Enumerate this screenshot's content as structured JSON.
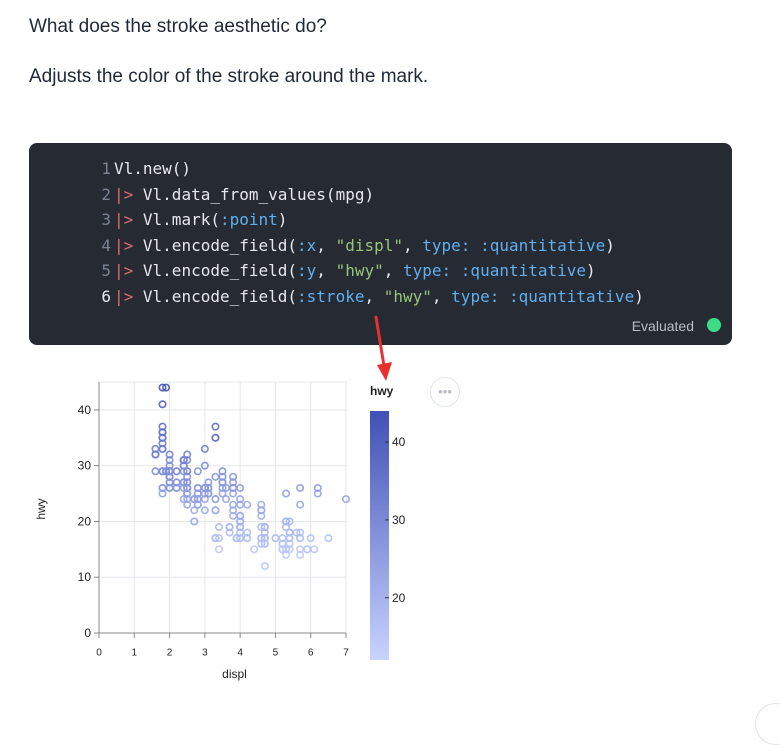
{
  "question": "What does the stroke aesthetic do?",
  "answer": "Adjusts the color of the stroke around the mark.",
  "code_cell": {
    "line_numbers": [
      "1",
      "2",
      "3",
      "4",
      "5",
      "6"
    ],
    "lines": [
      [
        {
          "t": "plain",
          "v": "Vl.new()"
        }
      ],
      [
        {
          "t": "pipe",
          "v": "|> "
        },
        {
          "t": "plain",
          "v": "Vl.data_from_values(mpg)"
        }
      ],
      [
        {
          "t": "pipe",
          "v": "|> "
        },
        {
          "t": "plain",
          "v": "Vl.mark("
        },
        {
          "t": "atom",
          "v": ":point"
        },
        {
          "t": "plain",
          "v": ")"
        }
      ],
      [
        {
          "t": "pipe",
          "v": "|> "
        },
        {
          "t": "plain",
          "v": "Vl.encode_field("
        },
        {
          "t": "atom",
          "v": ":x"
        },
        {
          "t": "plain",
          "v": ", "
        },
        {
          "t": "str",
          "v": "\"displ\""
        },
        {
          "t": "plain",
          "v": ", "
        },
        {
          "t": "key",
          "v": "type: "
        },
        {
          "t": "atom",
          "v": ":quantitative"
        },
        {
          "t": "plain",
          "v": ")"
        }
      ],
      [
        {
          "t": "pipe",
          "v": "|> "
        },
        {
          "t": "plain",
          "v": "Vl.encode_field("
        },
        {
          "t": "atom",
          "v": ":y"
        },
        {
          "t": "plain",
          "v": ", "
        },
        {
          "t": "str",
          "v": "\"hwy\""
        },
        {
          "t": "plain",
          "v": ", "
        },
        {
          "t": "key",
          "v": "type: "
        },
        {
          "t": "atom",
          "v": ":quantitative"
        },
        {
          "t": "plain",
          "v": ")"
        }
      ],
      [
        {
          "t": "pipe",
          "v": "|> "
        },
        {
          "t": "plain",
          "v": "Vl.encode_field("
        },
        {
          "t": "atom",
          "v": ":stroke"
        },
        {
          "t": "plain",
          "v": ", "
        },
        {
          "t": "str",
          "v": "\"hwy\""
        },
        {
          "t": "plain",
          "v": ", "
        },
        {
          "t": "key",
          "v": "type: "
        },
        {
          "t": "atom",
          "v": ":quantitative"
        },
        {
          "t": "plain",
          "v": ")"
        }
      ]
    ],
    "status": "Evaluated",
    "status_color": "#3ddc84"
  },
  "more_button_label": "•••",
  "chart_data": {
    "type": "scatter",
    "xlabel": "displ",
    "ylabel": "hwy",
    "xlim": [
      0,
      7
    ],
    "ylim": [
      0,
      45
    ],
    "x_ticks": [
      "0",
      "1",
      "2",
      "3",
      "4",
      "5",
      "6",
      "7"
    ],
    "y_ticks": [
      "0",
      "10",
      "20",
      "30",
      "40"
    ],
    "grid": true,
    "legend": {
      "title": "hwy",
      "type": "gradient",
      "ticks": [
        "40",
        "30",
        "20"
      ],
      "domain": [
        12,
        44
      ],
      "colors": [
        "#c8d3ff",
        "#3f51b5"
      ],
      "placement": "right"
    },
    "points": [
      [
        1.8,
        29
      ],
      [
        1.8,
        29
      ],
      [
        2.0,
        31
      ],
      [
        2.0,
        30
      ],
      [
        2.8,
        26
      ],
      [
        2.8,
        26
      ],
      [
        3.1,
        27
      ],
      [
        1.8,
        26
      ],
      [
        1.8,
        25
      ],
      [
        2.0,
        28
      ],
      [
        2.0,
        27
      ],
      [
        2.8,
        25
      ],
      [
        2.8,
        25
      ],
      [
        3.1,
        25
      ],
      [
        3.1,
        25
      ],
      [
        2.8,
        24
      ],
      [
        3.1,
        25
      ],
      [
        4.2,
        23
      ],
      [
        5.3,
        20
      ],
      [
        5.3,
        15
      ],
      [
        5.3,
        20
      ],
      [
        5.7,
        17
      ],
      [
        6.0,
        17
      ],
      [
        5.7,
        26
      ],
      [
        5.7,
        23
      ],
      [
        6.2,
        26
      ],
      [
        6.2,
        25
      ],
      [
        7.0,
        24
      ],
      [
        5.3,
        19
      ],
      [
        5.3,
        14
      ],
      [
        5.7,
        15
      ],
      [
        6.5,
        17
      ],
      [
        2.4,
        27
      ],
      [
        2.4,
        30
      ],
      [
        3.1,
        26
      ],
      [
        3.5,
        29
      ],
      [
        3.6,
        26
      ],
      [
        2.4,
        24
      ],
      [
        3.0,
        24
      ],
      [
        3.3,
        22
      ],
      [
        3.3,
        22
      ],
      [
        3.3,
        24
      ],
      [
        3.3,
        24
      ],
      [
        3.3,
        17
      ],
      [
        3.8,
        22
      ],
      [
        3.8,
        21
      ],
      [
        3.8,
        23
      ],
      [
        4.0,
        23
      ],
      [
        3.7,
        19
      ],
      [
        3.7,
        18
      ],
      [
        3.9,
        17
      ],
      [
        3.9,
        17
      ],
      [
        4.7,
        19
      ],
      [
        4.7,
        19
      ],
      [
        4.7,
        12
      ],
      [
        5.2,
        17
      ],
      [
        5.2,
        15
      ],
      [
        3.9,
        17
      ],
      [
        4.7,
        17
      ],
      [
        4.7,
        12
      ],
      [
        4.7,
        17
      ],
      [
        5.2,
        16
      ],
      [
        5.7,
        18
      ],
      [
        5.9,
        15
      ],
      [
        4.7,
        16
      ],
      [
        4.7,
        12
      ],
      [
        4.7,
        17
      ],
      [
        4.7,
        17
      ],
      [
        4.7,
        16
      ],
      [
        4.7,
        12
      ],
      [
        5.2,
        15
      ],
      [
        5.2,
        16
      ],
      [
        5.7,
        17
      ],
      [
        5.9,
        15
      ],
      [
        4.6,
        17
      ],
      [
        5.4,
        17
      ],
      [
        5.4,
        18
      ],
      [
        4.0,
        17
      ],
      [
        4.0,
        19
      ],
      [
        4.0,
        17
      ],
      [
        4.0,
        19
      ],
      [
        4.6,
        19
      ],
      [
        5.0,
        17
      ],
      [
        4.2,
        17
      ],
      [
        4.2,
        17
      ],
      [
        4.6,
        16
      ],
      [
        4.6,
        16
      ],
      [
        4.6,
        17
      ],
      [
        5.4,
        15
      ],
      [
        5.4,
        17
      ],
      [
        3.8,
        26
      ],
      [
        3.8,
        25
      ],
      [
        4.0,
        26
      ],
      [
        4.0,
        24
      ],
      [
        4.6,
        21
      ],
      [
        4.6,
        22
      ],
      [
        4.6,
        23
      ],
      [
        4.6,
        22
      ],
      [
        5.4,
        20
      ],
      [
        1.6,
        33
      ],
      [
        1.6,
        32
      ],
      [
        1.6,
        32
      ],
      [
        1.6,
        29
      ],
      [
        1.6,
        32
      ],
      [
        1.8,
        34
      ],
      [
        1.8,
        36
      ],
      [
        1.8,
        36
      ],
      [
        2.0,
        29
      ],
      [
        2.4,
        26
      ],
      [
        2.4,
        27
      ],
      [
        2.4,
        30
      ],
      [
        2.4,
        31
      ],
      [
        2.5,
        26
      ],
      [
        2.5,
        26
      ],
      [
        3.3,
        28
      ],
      [
        2.0,
        26
      ],
      [
        2.0,
        29
      ],
      [
        2.0,
        28
      ],
      [
        2.0,
        27
      ],
      [
        2.7,
        24
      ],
      [
        2.7,
        24
      ],
      [
        2.7,
        24
      ],
      [
        3.0,
        22
      ],
      [
        3.7,
        19
      ],
      [
        4.0,
        20
      ],
      [
        4.7,
        17
      ],
      [
        4.7,
        12
      ],
      [
        4.7,
        19
      ],
      [
        4.7,
        18
      ],
      [
        5.7,
        14
      ],
      [
        6.1,
        15
      ],
      [
        4.0,
        18
      ],
      [
        4.2,
        18
      ],
      [
        4.4,
        15
      ],
      [
        4.6,
        17
      ],
      [
        5.4,
        16
      ],
      [
        5.4,
        18
      ],
      [
        5.4,
        17
      ],
      [
        4.0,
        19
      ],
      [
        4.0,
        19
      ],
      [
        4.6,
        17
      ],
      [
        5.0,
        17
      ],
      [
        2.4,
        29
      ],
      [
        2.4,
        27
      ],
      [
        2.5,
        31
      ],
      [
        2.5,
        32
      ],
      [
        3.5,
        27
      ],
      [
        3.5,
        26
      ],
      [
        3.0,
        26
      ],
      [
        3.0,
        25
      ],
      [
        3.5,
        25
      ],
      [
        3.3,
        17
      ],
      [
        3.3,
        17
      ],
      [
        4.0,
        20
      ],
      [
        5.6,
        18
      ],
      [
        3.1,
        26
      ],
      [
        3.8,
        26
      ],
      [
        3.8,
        27
      ],
      [
        3.8,
        28
      ],
      [
        5.3,
        25
      ],
      [
        2.5,
        25
      ],
      [
        2.5,
        24
      ],
      [
        2.5,
        27
      ],
      [
        2.5,
        25
      ],
      [
        2.5,
        26
      ],
      [
        2.5,
        23
      ],
      [
        2.2,
        26
      ],
      [
        2.2,
        26
      ],
      [
        2.5,
        26
      ],
      [
        2.5,
        26
      ],
      [
        2.5,
        25
      ],
      [
        2.5,
        27
      ],
      [
        2.5,
        25
      ],
      [
        2.5,
        27
      ],
      [
        2.7,
        20
      ],
      [
        2.7,
        20
      ],
      [
        3.4,
        19
      ],
      [
        3.4,
        17
      ],
      [
        4.0,
        20
      ],
      [
        4.7,
        17
      ],
      [
        2.2,
        29
      ],
      [
        2.2,
        27
      ],
      [
        2.4,
        31
      ],
      [
        2.4,
        31
      ],
      [
        3.0,
        26
      ],
      [
        3.0,
        26
      ],
      [
        3.5,
        28
      ],
      [
        2.2,
        27
      ],
      [
        2.2,
        29
      ],
      [
        2.4,
        31
      ],
      [
        2.4,
        31
      ],
      [
        3.0,
        26
      ],
      [
        3.0,
        26
      ],
      [
        3.5,
        27
      ],
      [
        3.0,
        30
      ],
      [
        3.0,
        33
      ],
      [
        3.3,
        35
      ],
      [
        3.3,
        37
      ],
      [
        3.3,
        35
      ],
      [
        3.4,
        15
      ],
      [
        1.8,
        33
      ],
      [
        1.8,
        35
      ],
      [
        1.8,
        37
      ],
      [
        1.8,
        35
      ],
      [
        1.8,
        44
      ],
      [
        1.8,
        41
      ],
      [
        1.8,
        33
      ],
      [
        1.9,
        29
      ],
      [
        1.9,
        29
      ],
      [
        2.0,
        32
      ],
      [
        2.0,
        29
      ],
      [
        2.5,
        28
      ],
      [
        2.5,
        29
      ],
      [
        2.7,
        20
      ],
      [
        2.7,
        20
      ],
      [
        2.7,
        22
      ],
      [
        4.0,
        21
      ],
      [
        4.0,
        21
      ],
      [
        4.0,
        21
      ],
      [
        4.7,
        16
      ],
      [
        2.0,
        26
      ],
      [
        2.0,
        29
      ],
      [
        2.0,
        29
      ],
      [
        2.8,
        23
      ],
      [
        2.8,
        24
      ],
      [
        1.9,
        44
      ],
      [
        2.0,
        29
      ],
      [
        2.0,
        26
      ],
      [
        2.0,
        29
      ],
      [
        2.0,
        29
      ],
      [
        2.5,
        29
      ],
      [
        2.5,
        29
      ],
      [
        2.8,
        23
      ],
      [
        2.8,
        24
      ],
      [
        1.8,
        29
      ],
      [
        1.8,
        26
      ],
      [
        2.0,
        29
      ],
      [
        2.0,
        28
      ],
      [
        2.8,
        29
      ],
      [
        3.6,
        24
      ]
    ]
  }
}
